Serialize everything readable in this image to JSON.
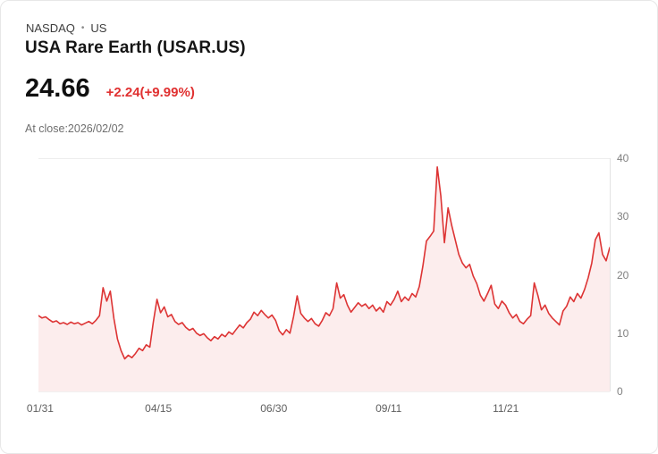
{
  "header": {
    "exchange": "NASDAQ",
    "separator": "•",
    "region": "US",
    "title": "USA Rare Earth (USAR.US)"
  },
  "quote": {
    "price": "24.66",
    "change": "+2.24(+9.99%)",
    "as_of": "At close:2026/02/02"
  },
  "theme": {
    "accent_red": "#e03131",
    "grid_color": "#ededed"
  },
  "chart_data": {
    "type": "area",
    "title": "USA Rare Earth (USAR.US) price history",
    "xlabel": "",
    "ylabel": "",
    "ylim": [
      0,
      40
    ],
    "grid": "minimal",
    "legend": "none",
    "line_color": "#dd3434",
    "fill_color": "rgba(221,52,52,0.09)",
    "y_ticks": [
      0,
      10,
      20,
      30,
      40
    ],
    "x_ticks": [
      {
        "label": "01/31",
        "pos": 0.003
      },
      {
        "label": "04/15",
        "pos": 0.21
      },
      {
        "label": "06/30",
        "pos": 0.412
      },
      {
        "label": "09/11",
        "pos": 0.613
      },
      {
        "label": "11/21",
        "pos": 0.818
      }
    ],
    "values": [
      13.0,
      12.6,
      12.8,
      12.3,
      11.9,
      12.1,
      11.6,
      11.8,
      11.5,
      11.9,
      11.6,
      11.8,
      11.4,
      11.7,
      12.0,
      11.6,
      12.2,
      13.0,
      17.8,
      15.5,
      17.2,
      12.5,
      9.0,
      7.0,
      5.6,
      6.2,
      5.8,
      6.5,
      7.4,
      7.0,
      8.0,
      7.6,
      12.0,
      15.8,
      13.5,
      14.5,
      12.8,
      13.2,
      12.0,
      11.5,
      11.8,
      11.0,
      10.5,
      10.8,
      10.0,
      9.6,
      9.9,
      9.2,
      8.7,
      9.4,
      9.0,
      9.8,
      9.4,
      10.2,
      9.8,
      10.6,
      11.4,
      10.9,
      11.8,
      12.4,
      13.6,
      13.0,
      13.9,
      13.2,
      12.6,
      13.1,
      12.2,
      10.4,
      9.7,
      10.6,
      10.0,
      12.8,
      16.4,
      13.4,
      12.6,
      12.0,
      12.5,
      11.6,
      11.2,
      12.2,
      13.5,
      13.0,
      14.2,
      18.6,
      16.0,
      16.6,
      14.8,
      13.6,
      14.4,
      15.2,
      14.6,
      15.0,
      14.2,
      14.8,
      13.8,
      14.4,
      13.6,
      15.4,
      14.8,
      15.8,
      17.2,
      15.4,
      16.2,
      15.6,
      16.8,
      16.2,
      18.0,
      21.5,
      25.8,
      26.6,
      27.5,
      38.5,
      33.5,
      25.5,
      31.5,
      28.5,
      26.0,
      23.5,
      22.0,
      21.2,
      21.8,
      19.8,
      18.5,
      16.5,
      15.5,
      16.8,
      18.2,
      15.0,
      14.2,
      15.5,
      14.8,
      13.5,
      12.6,
      13.2,
      12.0,
      11.6,
      12.4,
      13.0,
      18.6,
      16.5,
      14.0,
      14.8,
      13.4,
      12.6,
      12.0,
      11.4,
      13.8,
      14.6,
      16.2,
      15.4,
      16.8,
      16.0,
      17.5,
      19.5,
      22.0,
      26.0,
      27.2,
      23.5,
      22.4,
      24.66
    ]
  }
}
